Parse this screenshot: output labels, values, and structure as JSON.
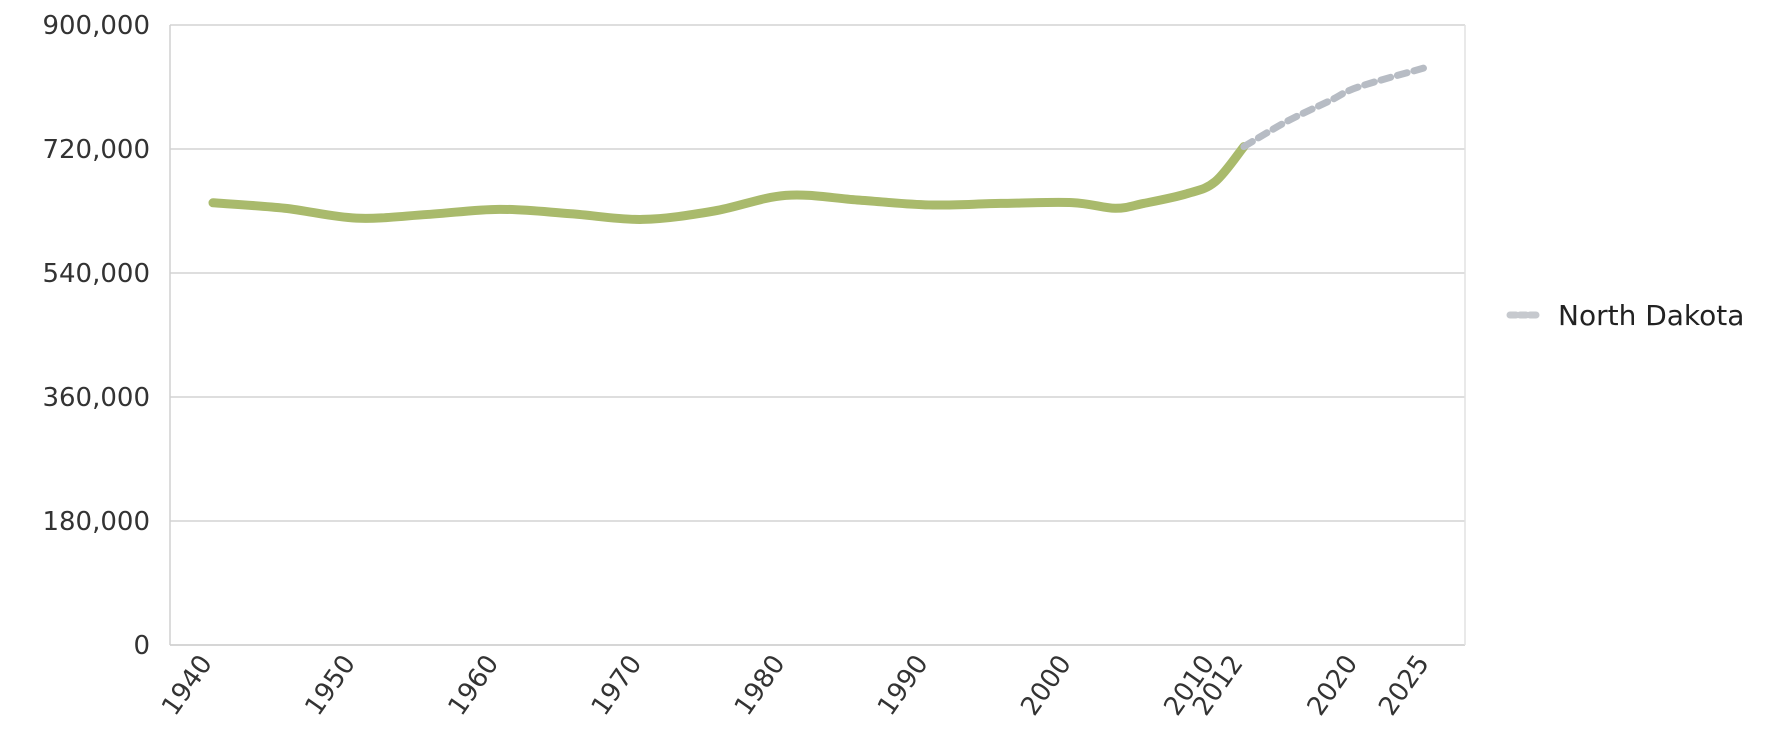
{
  "chart_data": {
    "type": "line",
    "title": "",
    "xlabel": "",
    "ylabel": "",
    "ylim": [
      0,
      900000
    ],
    "xlim": [
      1940,
      2025
    ],
    "y_ticks": [
      0,
      180000,
      360000,
      540000,
      720000,
      900000
    ],
    "y_tick_labels": [
      "0",
      "180,000",
      "360,000",
      "540,000",
      "720,000",
      "900,000"
    ],
    "x_ticks": [
      1940,
      1950,
      1960,
      1970,
      1980,
      1990,
      2000,
      2010,
      2012,
      2020,
      2025
    ],
    "x_tick_labels": [
      "1940",
      "1950",
      "1960",
      "1970",
      "1980",
      "1990",
      "2000",
      "2010",
      "2012",
      "2020",
      "2025"
    ],
    "grid": true,
    "legend": {
      "position": "right"
    },
    "series": [
      {
        "name": "North Dakota",
        "color": "#a9ba6c",
        "style": "solid",
        "points": [
          [
            1940,
            641935
          ],
          [
            1945,
            634000
          ],
          [
            1950,
            619636
          ],
          [
            1955,
            625000
          ],
          [
            1960,
            632446
          ],
          [
            1965,
            626000
          ],
          [
            1970,
            617761
          ],
          [
            1975,
            630000
          ],
          [
            1980,
            652717
          ],
          [
            1985,
            646000
          ],
          [
            1990,
            638800
          ],
          [
            1995,
            641000
          ],
          [
            2000,
            642200
          ],
          [
            2003,
            634000
          ],
          [
            2005,
            641000
          ],
          [
            2008,
            655000
          ],
          [
            2010,
            672591
          ],
          [
            2012,
            723393
          ]
        ]
      },
      {
        "name": "North Dakota",
        "color": "#b7bcc4",
        "style": "dashed",
        "points": [
          [
            2012,
            723393
          ],
          [
            2015,
            760000
          ],
          [
            2018,
            790000
          ],
          [
            2020,
            810000
          ],
          [
            2025,
            840000
          ]
        ]
      }
    ],
    "legend_entries": [
      "North Dakota"
    ]
  }
}
